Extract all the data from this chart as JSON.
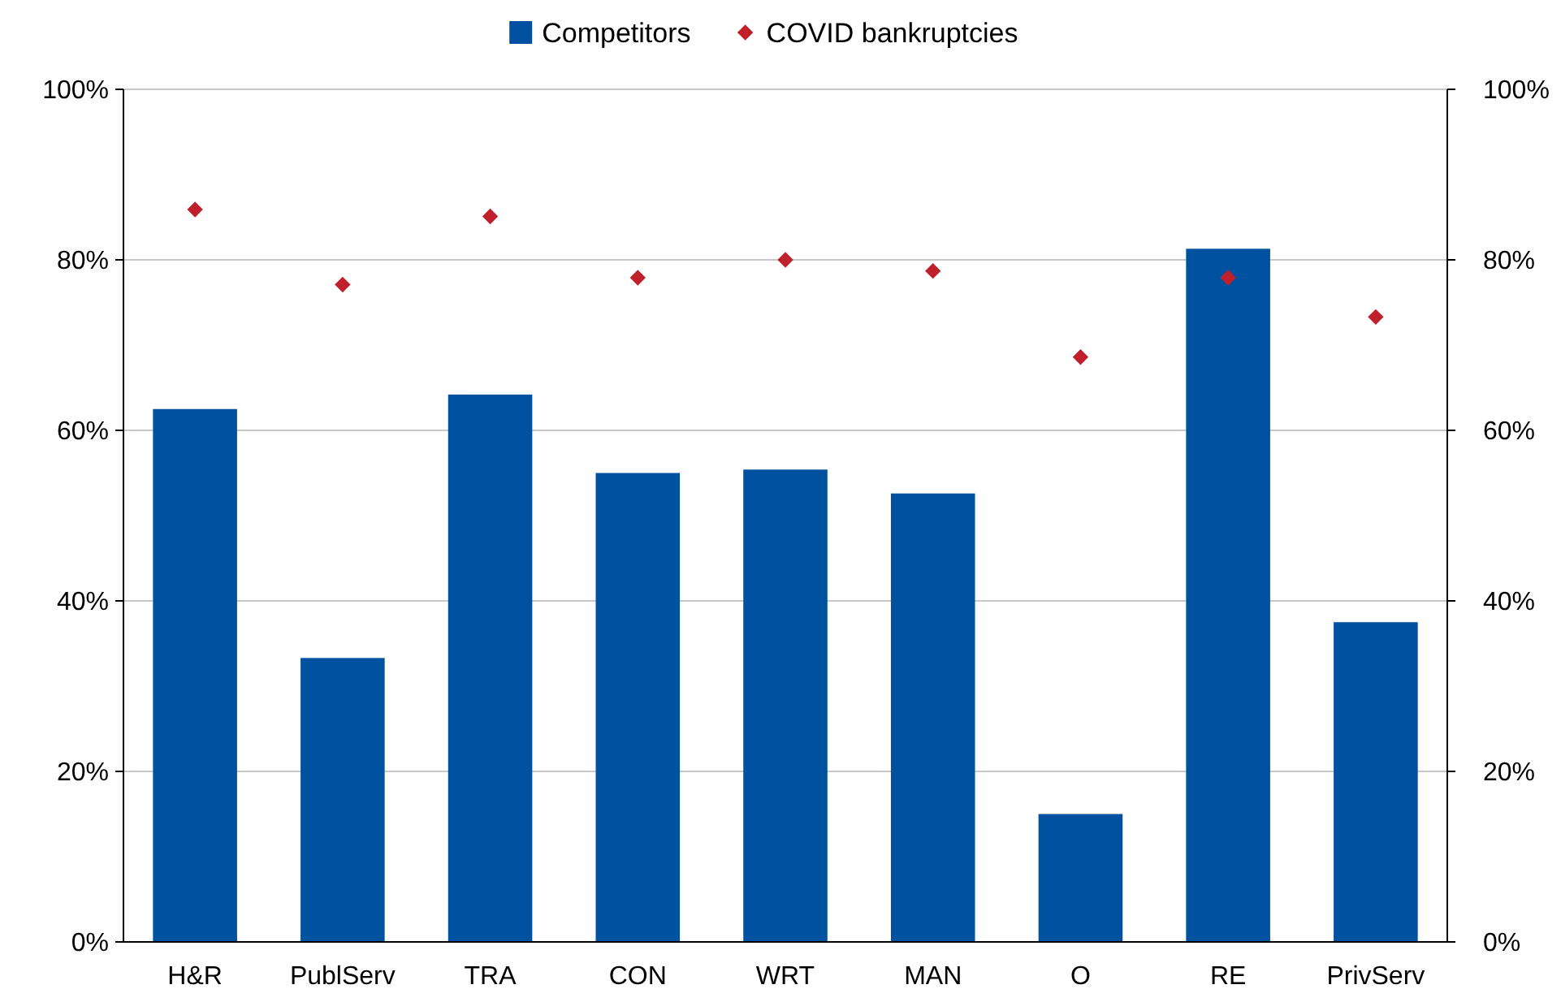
{
  "chart_data": {
    "type": "bar",
    "categories": [
      "H&R",
      "PublServ",
      "TRA",
      "CON",
      "WRT",
      "MAN",
      "O",
      "RE",
      "PrivServ"
    ],
    "series": [
      {
        "name": "Competitors",
        "color": "#0052a0",
        "values": [
          62.5,
          33.3,
          64.2,
          55.0,
          55.4,
          52.6,
          15.0,
          81.3,
          37.5
        ]
      },
      {
        "name": "COVID bankruptcies",
        "type": "scatter",
        "color": "#c0202c",
        "marker": "diamond",
        "values": [
          85.9,
          77.1,
          85.1,
          77.9,
          80.0,
          78.7,
          68.6,
          77.9,
          73.3
        ]
      }
    ],
    "ylim": [
      0,
      100
    ],
    "yticks": [
      {
        "value": 0,
        "label": "0%"
      },
      {
        "value": 20,
        "label": "20%"
      },
      {
        "value": 40,
        "label": "40%"
      },
      {
        "value": 60,
        "label": "60%"
      },
      {
        "value": 80,
        "label": "80%"
      },
      {
        "value": 100,
        "label": "100%"
      }
    ],
    "y2lim": [
      0,
      100
    ],
    "y2ticks": [
      {
        "value": 0,
        "label": "0%"
      },
      {
        "value": 20,
        "label": "20%"
      },
      {
        "value": 40,
        "label": "40%"
      },
      {
        "value": 60,
        "label": "60%"
      },
      {
        "value": 80,
        "label": "80%"
      },
      {
        "value": 100,
        "label": "100%"
      }
    ],
    "grid": "y",
    "legend": "top"
  }
}
